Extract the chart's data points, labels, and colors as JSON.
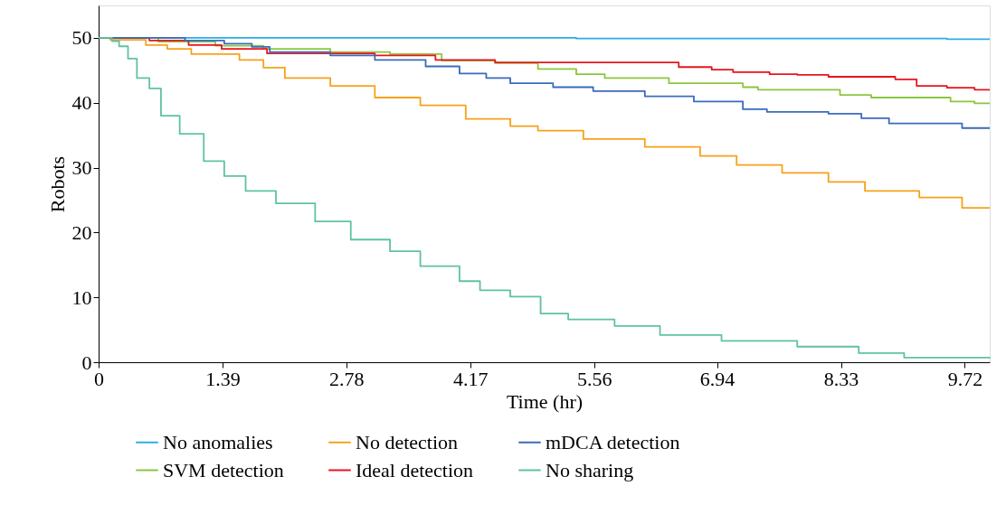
{
  "chart_data": {
    "type": "step",
    "xlabel": "Time (hr)",
    "ylabel": "Robots",
    "xlim": [
      0,
      10
    ],
    "xticks": [
      0,
      1.39,
      2.78,
      4.17,
      5.56,
      6.94,
      8.33,
      9.72
    ],
    "ylim": [
      0,
      55
    ],
    "yticks": [
      0,
      10,
      20,
      30,
      40,
      50
    ],
    "grid": false,
    "legend": "bottom",
    "marker": "none",
    "line_style": "solid",
    "series": [
      {
        "name": "No anomalies",
        "color": "#29aee7",
        "x": [
          0,
          5.36,
          9.52,
          10
        ],
        "values": [
          50,
          49.9,
          49.8,
          49.8
        ]
      },
      {
        "name": "SVM detection",
        "color": "#8cc63f",
        "x": [
          0,
          0.67,
          1.31,
          1.85,
          2.6,
          3.27,
          3.85,
          4.45,
          4.93,
          5.36,
          5.68,
          6.4,
          7.23,
          7.4,
          8.32,
          8.67,
          9.56,
          9.83,
          10
        ],
        "values": [
          50,
          49.4,
          48.8,
          48.3,
          47.8,
          47.5,
          46.5,
          46.1,
          45.2,
          44.4,
          43.8,
          43.0,
          42.4,
          42.0,
          41.2,
          40.8,
          40.2,
          39.9,
          39.9
        ]
      },
      {
        "name": "No detection",
        "color": "#f7a11a",
        "x": [
          0,
          0.13,
          0.53,
          0.77,
          1.04,
          1.58,
          1.85,
          2.09,
          2.6,
          3.1,
          3.61,
          4.12,
          4.62,
          4.93,
          5.44,
          6.13,
          6.75,
          7.16,
          7.67,
          8.19,
          8.6,
          9.21,
          9.69,
          10
        ],
        "values": [
          50,
          49.7,
          48.9,
          48.3,
          47.5,
          46.6,
          45.4,
          43.8,
          42.6,
          40.8,
          39.6,
          37.5,
          36.4,
          35.7,
          34.4,
          33.2,
          31.8,
          30.4,
          29.2,
          27.8,
          26.4,
          25.4,
          23.8,
          23.8
        ]
      },
      {
        "name": "Ideal detection",
        "color": "#e8141c",
        "x": [
          0,
          0.57,
          1.01,
          1.38,
          1.89,
          3.1,
          3.78,
          4.45,
          6.51,
          6.88,
          7.12,
          7.53,
          7.84,
          8.19,
          8.94,
          9.18,
          9.52,
          9.83,
          10
        ],
        "values": [
          50,
          49.6,
          48.9,
          48.3,
          47.6,
          47.3,
          46.6,
          46.2,
          45.5,
          45.1,
          44.7,
          44.4,
          44.3,
          44.0,
          43.6,
          42.6,
          42.3,
          42.0,
          42.0
        ]
      },
      {
        "name": "mDCA detection",
        "color": "#3a6bbd",
        "x": [
          0,
          0.97,
          1.41,
          1.72,
          1.92,
          2.6,
          3.1,
          3.67,
          4.05,
          4.35,
          4.62,
          5.1,
          5.55,
          6.13,
          6.68,
          7.23,
          7.5,
          8.19,
          8.56,
          8.87,
          9.69,
          10
        ],
        "values": [
          50,
          49.6,
          49.1,
          48.6,
          47.8,
          47.3,
          46.6,
          45.6,
          44.5,
          43.8,
          43.0,
          42.4,
          41.8,
          41.0,
          40.2,
          39.0,
          38.6,
          38.3,
          37.6,
          36.8,
          36.1,
          36.1
        ]
      },
      {
        "name": "No sharing",
        "color": "#5fc39d",
        "x": [
          0,
          0.15,
          0.23,
          0.33,
          0.43,
          0.57,
          0.7,
          0.91,
          1.18,
          1.41,
          1.65,
          1.99,
          2.43,
          2.83,
          3.27,
          3.61,
          4.05,
          4.28,
          4.62,
          4.96,
          5.27,
          5.79,
          6.3,
          6.99,
          7.84,
          8.53,
          9.04,
          10
        ],
        "values": [
          50,
          49.5,
          48.7,
          46.8,
          43.8,
          42.2,
          38.0,
          35.2,
          31.0,
          28.7,
          26.4,
          24.5,
          21.7,
          18.9,
          17.1,
          14.8,
          12.5,
          11.1,
          10.1,
          7.5,
          6.6,
          5.6,
          4.2,
          3.3,
          2.4,
          1.4,
          0.7,
          0.6
        ]
      }
    ]
  }
}
